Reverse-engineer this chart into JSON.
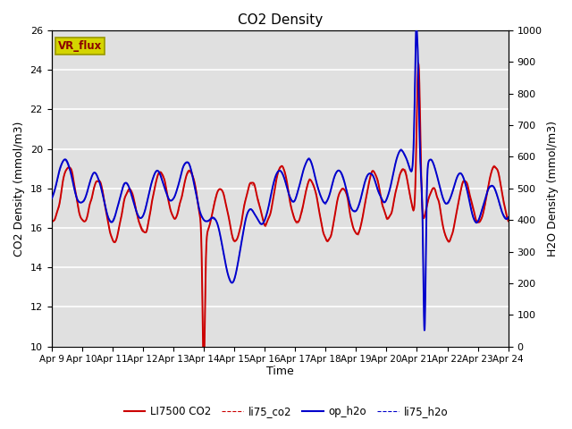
{
  "title": "CO2 Density",
  "xlabel": "Time",
  "ylabel_left": "CO2 Density (mmol/m3)",
  "ylabel_right": "H2O Density (mmol/m3)",
  "ylim_left": [
    10,
    26
  ],
  "ylim_right": [
    0,
    1000
  ],
  "yticks_left": [
    10,
    12,
    14,
    16,
    18,
    20,
    22,
    24,
    26
  ],
  "yticks_right": [
    0,
    100,
    200,
    300,
    400,
    500,
    600,
    700,
    800,
    900,
    1000
  ],
  "xtick_labels": [
    "Apr 9",
    "Apr 10",
    "Apr 11",
    "Apr 12",
    "Apr 13",
    "Apr 14",
    "Apr 15",
    "Apr 16",
    "Apr 17",
    "Apr 18",
    "Apr 19",
    "Apr 20",
    "Apr 21",
    "Apr 22",
    "Apr 23",
    "Apr 24"
  ],
  "legend_labels": [
    "LI7500 CO2",
    "li75_co2",
    "op_h2o",
    "li75_h2o"
  ],
  "legend_colors_li7500": "#cc0000",
  "legend_colors_li75co2": "#cc0000",
  "legend_colors_opH2o": "#0000cc",
  "legend_colors_li75h2o": "#0000cc",
  "color_li7500": "#cc0000",
  "color_li75co2": "#cc0000",
  "color_opH2o": "#0000cc",
  "color_li75h2o": "#0000cc",
  "vr_flux_bg": "#d4d400",
  "vr_flux_edge": "#999900",
  "vr_flux_text": "#8B0000",
  "bg_color": "#e0e0e0",
  "grid_color": "#ffffff",
  "n_points": 2000
}
